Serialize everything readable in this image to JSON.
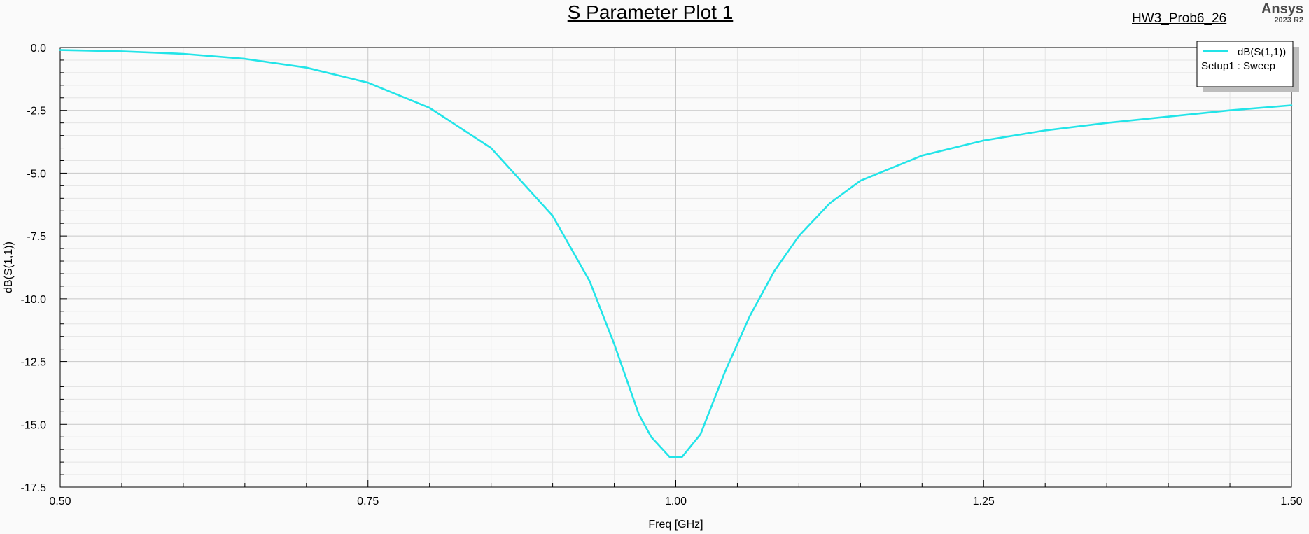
{
  "header": {
    "title": "S Parameter Plot 1",
    "design": "HW3_Prob6_26",
    "brand": "Ansys",
    "version": "2023 R2"
  },
  "chart_data": {
    "type": "line",
    "title": "S Parameter Plot 1",
    "xlabel": "Freq [GHz]",
    "ylabel": "dB(S(1,1))",
    "xlim": [
      0.5,
      1.5
    ],
    "ylim": [
      -17.5,
      0.0
    ],
    "xticks": [
      "0.50",
      "0.75",
      "1.00",
      "1.25",
      "1.50"
    ],
    "yticks": [
      "0.0",
      "-2.5",
      "-5.0",
      "-7.5",
      "-10.0",
      "-12.5",
      "-15.0",
      "-17.5"
    ],
    "grid": true,
    "legend_position": "top-right",
    "legend_subtitle": "Setup1 : Sweep",
    "series": [
      {
        "name": "dB(S(1,1))",
        "color": "#22e4e8",
        "x": [
          0.5,
          0.55,
          0.6,
          0.65,
          0.7,
          0.75,
          0.8,
          0.85,
          0.9,
          0.93,
          0.95,
          0.97,
          0.98,
          0.995,
          1.005,
          1.02,
          1.04,
          1.06,
          1.08,
          1.1,
          1.125,
          1.15,
          1.2,
          1.25,
          1.3,
          1.35,
          1.4,
          1.45,
          1.5
        ],
        "values": [
          -0.1,
          -0.15,
          -0.25,
          -0.45,
          -0.8,
          -1.4,
          -2.4,
          -4.0,
          -6.7,
          -9.3,
          -11.8,
          -14.6,
          -15.5,
          -16.3,
          -16.3,
          -15.4,
          -12.9,
          -10.7,
          -8.9,
          -7.5,
          -6.2,
          -5.3,
          -4.3,
          -3.7,
          -3.3,
          -3.0,
          -2.75,
          -2.5,
          -2.3
        ]
      }
    ]
  }
}
